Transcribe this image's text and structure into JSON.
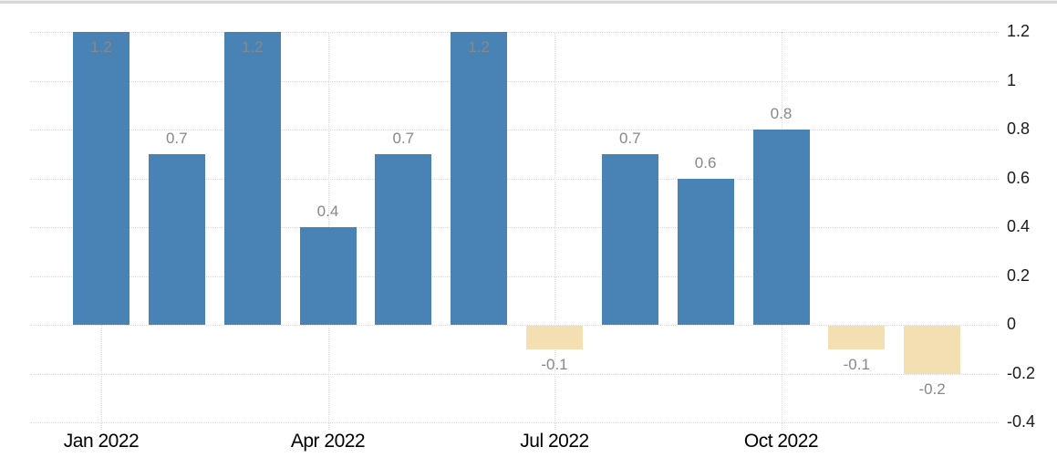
{
  "chart_data": {
    "type": "bar",
    "title": "",
    "xlabel": "",
    "ylabel": "",
    "values": [
      1.2,
      0.7,
      1.2,
      0.4,
      0.7,
      1.2,
      -0.1,
      0.7,
      0.6,
      0.8,
      -0.1,
      -0.2
    ],
    "bar_labels": [
      "1.2",
      "0.7",
      "1.2",
      "0.4",
      "0.7",
      "1.2",
      "-0.1",
      "0.7",
      "0.6",
      "0.8",
      "-0.1",
      "-0.2"
    ],
    "x_tick_labels": [
      {
        "label": "Jan 2022",
        "bar_index": 0
      },
      {
        "label": "Apr 2022",
        "bar_index": 3
      },
      {
        "label": "Jul 2022",
        "bar_index": 6
      },
      {
        "label": "Oct 2022",
        "bar_index": 9
      }
    ],
    "y_ticks": [
      {
        "label": "1.2",
        "value": 1.2
      },
      {
        "label": "1",
        "value": 1.0
      },
      {
        "label": "0.8",
        "value": 0.8
      },
      {
        "label": "0.6",
        "value": 0.6
      },
      {
        "label": "0.4",
        "value": 0.4
      },
      {
        "label": "0.2",
        "value": 0.2
      },
      {
        "label": "0",
        "value": 0.0
      },
      {
        "label": "-0.2",
        "value": -0.2
      },
      {
        "label": "-0.4",
        "value": -0.4
      }
    ],
    "ylim": [
      -0.4,
      1.2
    ],
    "y_axis_side": "right",
    "grid": true,
    "legend": "none",
    "colors": {
      "positive_bar": "#4982b4",
      "negative_bar": "#f3dfb1",
      "grid": "#d9d9d9",
      "value_label": "#888888",
      "axis_label": "#000000"
    }
  }
}
